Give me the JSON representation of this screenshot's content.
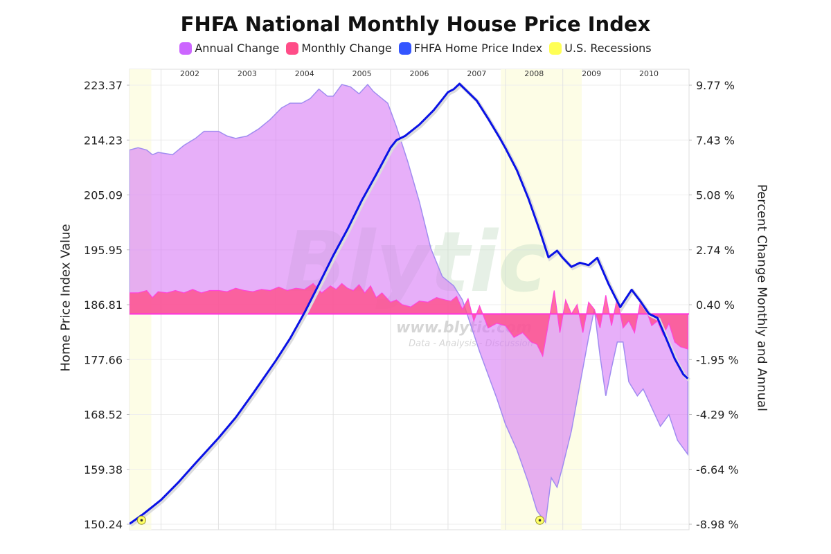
{
  "chart_data": {
    "type": "line",
    "title": "FHFA National Monthly House Price Index",
    "legend": [
      {
        "name": "Annual Change",
        "color": "#cc66ff"
      },
      {
        "name": "Monthly Change",
        "color": "#ff4d88"
      },
      {
        "name": "FHFA Home Price Index",
        "color": "#3355ff"
      },
      {
        "name": "U.S. Recessions",
        "color": "#ffff55"
      }
    ],
    "legend_position": "top",
    "ylabel_left": "Home Price Index Value",
    "ylabel_right": "Percent Change Monthly and Annual",
    "x_ticks": [
      "2002",
      "2003",
      "2004",
      "2005",
      "2006",
      "2007",
      "2008",
      "2009",
      "2010"
    ],
    "x_tick_years": [
      2002,
      2003,
      2004,
      2005,
      2006,
      2007,
      2008,
      2009,
      2010
    ],
    "xlim": [
      2001.45,
      2011.2
    ],
    "y_left_ticks": [
      "223.37",
      "214.23",
      "205.09",
      "195.95",
      "186.81",
      "177.66",
      "168.52",
      "159.38",
      "150.24"
    ],
    "ylim_left": [
      150.24,
      223.37
    ],
    "y_right_ticks": [
      "9.77 %",
      "7.43 %",
      "5.08 %",
      "2.74 %",
      "0.40 %",
      "-1.95 %",
      "-4.29 %",
      "-6.64 %",
      "-8.98 %"
    ],
    "ylim_right": [
      -8.98,
      9.77
    ],
    "grid": true,
    "recessions": [
      [
        2001.45,
        2001.83
      ],
      [
        2007.92,
        2009.33
      ]
    ],
    "markers": [
      {
        "x": 2001.66,
        "y_left": 150.9
      },
      {
        "x": 2008.6,
        "y_left": 150.9
      }
    ],
    "watermark": {
      "brand": "Blytic",
      "url": "www.blytic.com",
      "tagline": "Data - Analysis - Discussion"
    },
    "series": [
      {
        "name": "FHFA Home Price Index",
        "axis": "left",
        "x": [
          2001.45,
          2001.7,
          2002.0,
          2002.3,
          2002.6,
          2003.0,
          2003.3,
          2003.6,
          2004.0,
          2004.25,
          2004.5,
          2004.75,
          2005.0,
          2005.25,
          2005.5,
          2005.75,
          2006.0,
          2006.1,
          2006.25,
          2006.5,
          2006.75,
          2006.9,
          2007.0,
          2007.1,
          2007.2,
          2007.35,
          2007.5,
          2007.7,
          2007.9,
          2008.0,
          2008.2,
          2008.4,
          2008.6,
          2008.75,
          2008.9,
          2009.0,
          2009.15,
          2009.3,
          2009.45,
          2009.6,
          2009.8,
          2010.0,
          2010.2,
          2010.35,
          2010.5,
          2010.65,
          2010.8,
          2010.95,
          2011.1,
          2011.18
        ],
        "values": [
          150.3,
          152.0,
          154.3,
          157.2,
          160.4,
          164.6,
          168.0,
          172.0,
          177.5,
          181.2,
          185.5,
          190.2,
          195.0,
          199.4,
          204.2,
          208.5,
          213.0,
          214.2,
          214.9,
          216.8,
          219.2,
          221.0,
          222.2,
          222.7,
          223.6,
          222.2,
          220.8,
          217.8,
          214.6,
          212.9,
          209.2,
          204.5,
          199.1,
          194.7,
          195.8,
          194.6,
          193.1,
          193.8,
          193.4,
          194.6,
          190.2,
          186.4,
          189.3,
          187.4,
          185.3,
          184.6,
          181.2,
          177.8,
          175.2,
          174.5
        ]
      },
      {
        "name": "Annual Change",
        "axis": "right",
        "x": [
          2001.45,
          2001.6,
          2001.75,
          2001.85,
          2001.95,
          2002.2,
          2002.4,
          2002.6,
          2002.75,
          2003.0,
          2003.15,
          2003.3,
          2003.5,
          2003.7,
          2003.9,
          2004.1,
          2004.25,
          2004.45,
          2004.6,
          2004.75,
          2004.9,
          2005.0,
          2005.15,
          2005.3,
          2005.45,
          2005.6,
          2005.7,
          2005.8,
          2005.95,
          2006.1,
          2006.3,
          2006.5,
          2006.7,
          2006.9,
          2007.1,
          2007.25,
          2007.4,
          2007.55,
          2007.7,
          2007.85,
          2008.0,
          2008.2,
          2008.4,
          2008.55,
          2008.7,
          2008.8,
          2008.9,
          2009.0,
          2009.15,
          2009.3,
          2009.45,
          2009.55,
          2009.65,
          2009.75,
          2009.85,
          2009.95,
          2010.05,
          2010.15,
          2010.3,
          2010.4,
          2010.55,
          2010.7,
          2010.85,
          2011.0,
          2011.18
        ],
        "values": [
          7.0,
          7.1,
          7.0,
          6.8,
          6.9,
          6.8,
          7.2,
          7.5,
          7.8,
          7.8,
          7.6,
          7.5,
          7.6,
          7.9,
          8.3,
          8.8,
          9.0,
          9.0,
          9.2,
          9.6,
          9.3,
          9.3,
          9.8,
          9.7,
          9.4,
          9.8,
          9.5,
          9.3,
          9.0,
          8.0,
          6.5,
          4.8,
          2.8,
          1.6,
          1.2,
          0.6,
          -0.5,
          -1.6,
          -2.6,
          -3.6,
          -4.7,
          -5.8,
          -7.2,
          -8.4,
          -8.9,
          -7.0,
          -7.4,
          -6.5,
          -5.0,
          -3.0,
          -1.0,
          0.2,
          -1.8,
          -3.5,
          -2.3,
          -1.2,
          -1.2,
          -2.9,
          -3.5,
          -3.2,
          -4.0,
          -4.8,
          -4.3,
          -5.4,
          -6.0
        ]
      },
      {
        "name": "Monthly Change",
        "axis": "right",
        "x": [
          2001.45,
          2001.6,
          2001.75,
          2001.85,
          2001.95,
          2002.1,
          2002.25,
          2002.4,
          2002.55,
          2002.7,
          2002.85,
          2003.0,
          2003.15,
          2003.3,
          2003.45,
          2003.6,
          2003.75,
          2003.9,
          2004.05,
          2004.2,
          2004.35,
          2004.5,
          2004.65,
          2004.8,
          2004.95,
          2005.05,
          2005.15,
          2005.25,
          2005.35,
          2005.45,
          2005.55,
          2005.65,
          2005.75,
          2005.85,
          2006.0,
          2006.1,
          2006.2,
          2006.35,
          2006.5,
          2006.65,
          2006.8,
          2006.95,
          2007.05,
          2007.15,
          2007.25,
          2007.35,
          2007.45,
          2007.55,
          2007.7,
          2007.85,
          2008.0,
          2008.15,
          2008.3,
          2008.45,
          2008.55,
          2008.65,
          2008.75,
          2008.85,
          2008.95,
          2009.05,
          2009.15,
          2009.25,
          2009.35,
          2009.45,
          2009.55,
          2009.65,
          2009.75,
          2009.85,
          2009.95,
          2010.05,
          2010.15,
          2010.25,
          2010.35,
          2010.45,
          2010.55,
          2010.65,
          2010.75,
          2010.85,
          2010.95,
          2011.05,
          2011.18
        ],
        "values": [
          0.9,
          0.9,
          1.0,
          0.7,
          0.95,
          0.9,
          1.0,
          0.9,
          1.05,
          0.9,
          1.0,
          1.0,
          0.95,
          1.1,
          1.0,
          0.95,
          1.05,
          1.0,
          1.15,
          1.0,
          1.1,
          1.05,
          1.3,
          0.9,
          1.2,
          1.05,
          1.3,
          1.1,
          1.0,
          1.25,
          0.9,
          1.2,
          0.7,
          0.9,
          0.5,
          0.6,
          0.4,
          0.3,
          0.55,
          0.5,
          0.7,
          0.6,
          0.55,
          0.75,
          0.2,
          0.65,
          -0.3,
          0.35,
          -0.6,
          -0.4,
          -0.5,
          -1.0,
          -0.8,
          -1.2,
          -1.3,
          -1.8,
          -0.4,
          1.0,
          -0.8,
          0.6,
          0.0,
          0.4,
          -0.8,
          0.5,
          0.2,
          -0.6,
          0.8,
          -0.5,
          0.7,
          -0.6,
          -0.3,
          -0.8,
          0.5,
          0.2,
          -0.5,
          -0.3,
          -0.9,
          -0.4,
          -1.2,
          -1.4,
          -1.5
        ]
      }
    ]
  }
}
